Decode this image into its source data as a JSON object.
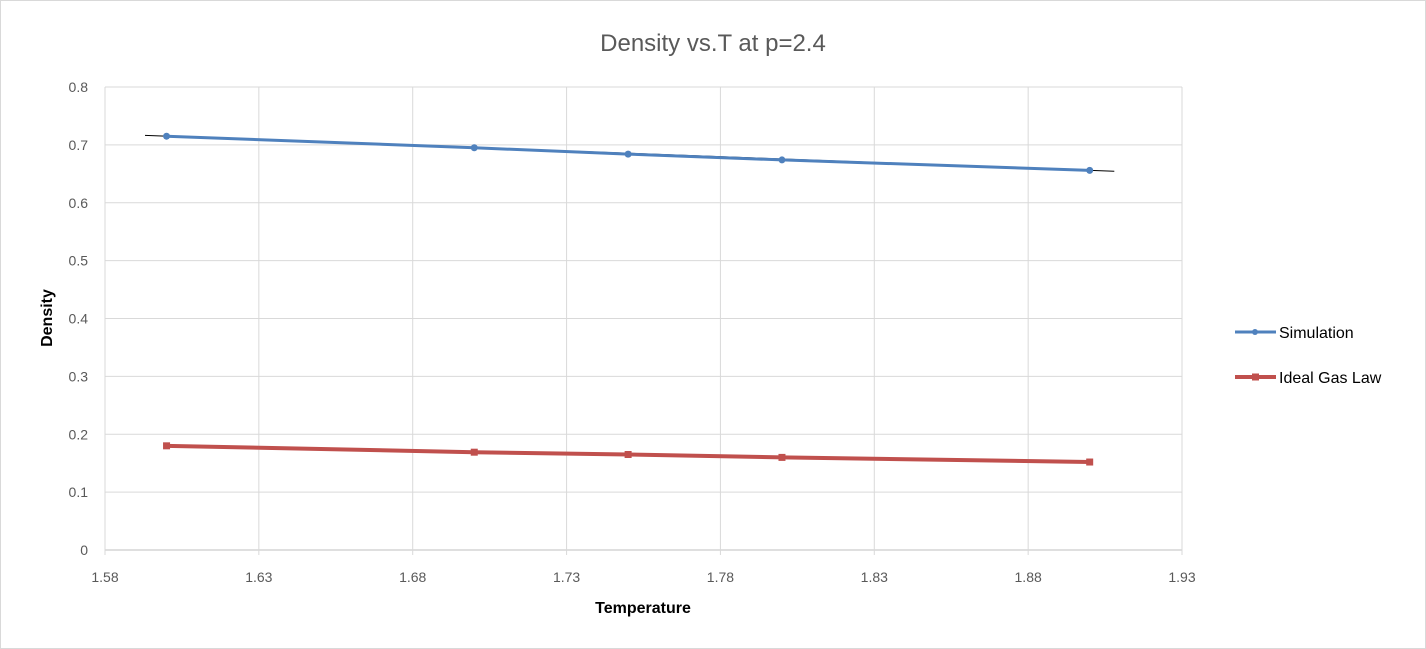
{
  "chart_data": {
    "type": "line",
    "title": "Density vs.T at p=2.4",
    "xlabel": "Temperature",
    "ylabel": "Density",
    "xlim": [
      1.58,
      1.93
    ],
    "ylim": [
      0,
      0.8
    ],
    "xticks": [
      "1.58",
      "1.63",
      "1.68",
      "1.73",
      "1.78",
      "1.83",
      "1.88",
      "1.93"
    ],
    "yticks": [
      "0",
      "0.1",
      "0.2",
      "0.3",
      "0.4",
      "0.5",
      "0.6",
      "0.7",
      "0.8"
    ],
    "grid": true,
    "legend_position": "right",
    "x": [
      1.6,
      1.7,
      1.75,
      1.8,
      1.9
    ],
    "series": [
      {
        "name": "Simulation",
        "values": [
          0.715,
          0.695,
          0.684,
          0.674,
          0.656
        ],
        "color": "#4f81bd",
        "marker": "circle"
      },
      {
        "name": "Ideal Gas Law",
        "values": [
          0.18,
          0.169,
          0.165,
          0.16,
          0.152
        ],
        "color": "#c0504d",
        "marker": "square"
      }
    ]
  }
}
